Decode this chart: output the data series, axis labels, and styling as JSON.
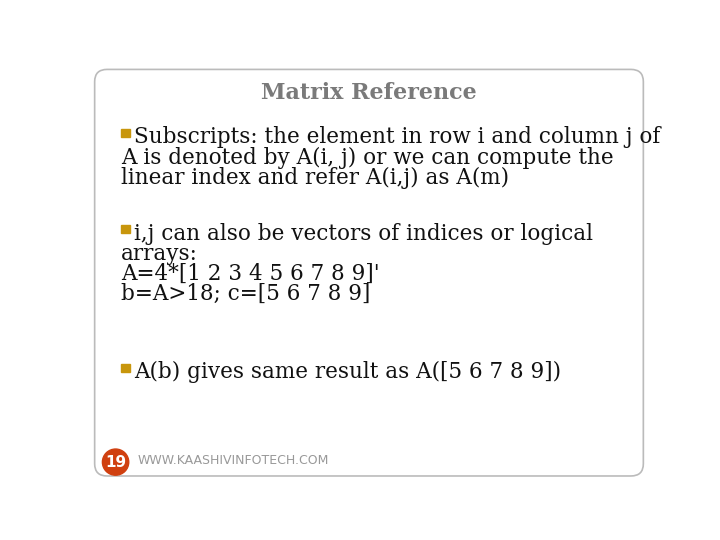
{
  "title": "Matrix Reference",
  "title_color": "#7a7a7a",
  "title_fontsize": 16,
  "background_color": "#ffffff",
  "border_color": "#bbbbbb",
  "bullet_color": "#c8960c",
  "text_color": "#111111",
  "bullet1_lines": [
    "Subscripts: the element in row i and column j of",
    "A is denoted by A(i, j) or we can compute the",
    "linear index and refer A(i,j) as A(m)"
  ],
  "bullet2_lines": [
    "i,j can also be vectors of indices or logical",
    "arrays:",
    "A=4*[1 2 3 4 5 6 7 8 9]'",
    "b=A>18; c=[5 6 7 8 9]"
  ],
  "bullet3_lines": [
    "A(b) gives same result as A([5 6 7 8 9])"
  ],
  "footer_text": "WWW.KAASHIVINFOTECH.COM",
  "page_number": "19",
  "page_circle_color": "#d04010",
  "main_fontsize": 15.5,
  "footer_fontsize": 9
}
